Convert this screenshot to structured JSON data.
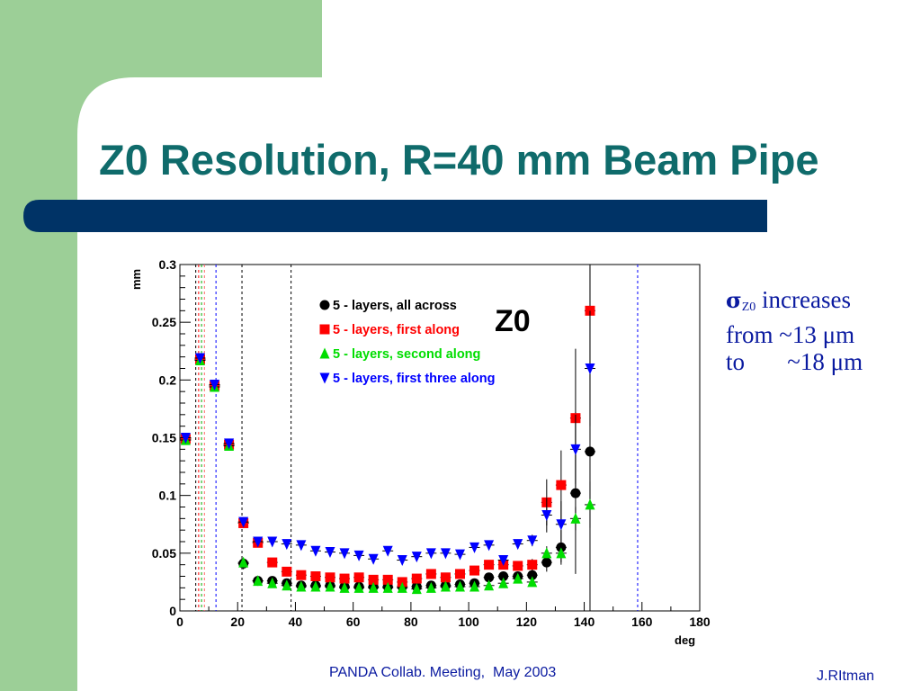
{
  "slide": {
    "title": "Z0 Resolution, R=40 mm Beam Pipe",
    "footer_center": "PANDA Collab. Meeting,  May 2003",
    "footer_right": "J.RItman",
    "side_note": {
      "sigma": "σ",
      "sub": "Z0",
      "line1_rest": " increases",
      "line2": "from ~13 μm",
      "line3": "to       ~18 μm"
    },
    "colors": {
      "title": "#0f6b6b",
      "green_panel": "#9ccf97",
      "bar": "#003366",
      "note_text": "#0a1aa0"
    }
  },
  "chart_data": {
    "type": "scatter",
    "title": "Z0",
    "xlabel": "deg",
    "ylabel": "mm",
    "xlim": [
      0,
      180
    ],
    "ylim": [
      0,
      0.3
    ],
    "xticks": [
      "0",
      "20",
      "40",
      "60",
      "80",
      "100",
      "120",
      "140",
      "160",
      "180"
    ],
    "yticks": [
      "0",
      "0.05",
      "0.1",
      "0.15",
      "0.2",
      "0.25",
      "0.3"
    ],
    "legend_position": "top-center",
    "vertical_lines": [
      {
        "x": 5.5,
        "color": "#000000"
      },
      {
        "x": 6.5,
        "color": "#ff0000"
      },
      {
        "x": 7.5,
        "color": "#00aa00"
      },
      {
        "x": 8.5,
        "color": "#ff6666"
      },
      {
        "x": 12.5,
        "color": "#0000ff"
      },
      {
        "x": 21.5,
        "color": "#000000"
      },
      {
        "x": 38.5,
        "color": "#000000"
      },
      {
        "x": 158.5,
        "color": "#0000ff"
      }
    ],
    "series": [
      {
        "name": "5 - layers, all across",
        "marker": "circle",
        "color": "#000000",
        "x": [
          22,
          27,
          32,
          37,
          42,
          47,
          52,
          57,
          62,
          67,
          72,
          77,
          82,
          87,
          92,
          97,
          102,
          107,
          112,
          117,
          122,
          127,
          132,
          137,
          142
        ],
        "y": [
          0.041,
          0.026,
          0.026,
          0.024,
          0.022,
          0.022,
          0.022,
          0.021,
          0.021,
          0.021,
          0.021,
          0.021,
          0.021,
          0.022,
          0.022,
          0.023,
          0.024,
          0.029,
          0.03,
          0.03,
          0.031,
          0.042,
          0.055,
          0.102,
          0.138
        ],
        "yerr": [
          0.005,
          0.004,
          0.004,
          0.004,
          0.004,
          0.004,
          0.004,
          0.004,
          0.004,
          0.004,
          0.004,
          0.004,
          0.004,
          0.004,
          0.004,
          0.004,
          0.004,
          0.004,
          0.004,
          0.004,
          0.005,
          0.008,
          0.015,
          0.07,
          0.16
        ]
      },
      {
        "name": "5 - layers, first along",
        "marker": "square",
        "color": "#ff0000",
        "x": [
          2,
          7,
          12,
          17,
          22,
          27,
          32,
          37,
          42,
          47,
          52,
          57,
          62,
          67,
          72,
          77,
          82,
          87,
          92,
          97,
          102,
          107,
          112,
          117,
          122,
          127,
          132,
          137,
          142
        ],
        "y": [
          0.149,
          0.218,
          0.195,
          0.144,
          0.076,
          0.059,
          0.042,
          0.034,
          0.031,
          0.03,
          0.029,
          0.028,
          0.029,
          0.027,
          0.027,
          0.025,
          0.028,
          0.032,
          0.029,
          0.032,
          0.035,
          0.04,
          0.04,
          0.039,
          0.04,
          0.094,
          0.109,
          0.167,
          0.26
        ],
        "yerr": [
          0.004,
          0.004,
          0.004,
          0.004,
          0.004,
          0.004,
          0.004,
          0.004,
          0.004,
          0.004,
          0.004,
          0.004,
          0.004,
          0.004,
          0.004,
          0.004,
          0.004,
          0.004,
          0.004,
          0.004,
          0.004,
          0.004,
          0.004,
          0.004,
          0.005,
          0.02,
          0.03,
          0.06,
          0.06
        ]
      },
      {
        "name": "5 - layers, second along",
        "marker": "triangle-up",
        "color": "#00dd00",
        "x": [
          2,
          7,
          12,
          17,
          22,
          27,
          32,
          37,
          42,
          47,
          52,
          57,
          62,
          67,
          72,
          77,
          82,
          87,
          92,
          97,
          102,
          107,
          112,
          117,
          122,
          127,
          132,
          137,
          142
        ],
        "y": [
          0.148,
          0.217,
          0.194,
          0.143,
          0.042,
          0.026,
          0.024,
          0.022,
          0.021,
          0.021,
          0.021,
          0.02,
          0.02,
          0.02,
          0.02,
          0.02,
          0.019,
          0.02,
          0.021,
          0.021,
          0.021,
          0.022,
          0.024,
          0.028,
          0.025,
          0.05,
          0.05,
          0.08,
          0.092
        ],
        "yerr": [
          0.004,
          0.004,
          0.004,
          0.004,
          0.004,
          0.004,
          0.004,
          0.004,
          0.004,
          0.004,
          0.004,
          0.004,
          0.004,
          0.004,
          0.004,
          0.004,
          0.004,
          0.004,
          0.004,
          0.004,
          0.004,
          0.004,
          0.004,
          0.004,
          0.004,
          0.006,
          0.008,
          0.01,
          0.02
        ]
      },
      {
        "name": "5 - layers, first three along",
        "marker": "triangle-down",
        "color": "#0000ff",
        "x": [
          2,
          7,
          12,
          17,
          22,
          27,
          32,
          37,
          42,
          47,
          52,
          57,
          62,
          67,
          72,
          77,
          82,
          87,
          92,
          97,
          102,
          107,
          112,
          117,
          122,
          127,
          132,
          137,
          142
        ],
        "y": [
          0.15,
          0.219,
          0.196,
          0.145,
          0.077,
          0.06,
          0.06,
          0.058,
          0.057,
          0.052,
          0.051,
          0.05,
          0.048,
          0.045,
          0.052,
          0.044,
          0.047,
          0.05,
          0.05,
          0.049,
          0.055,
          0.057,
          0.044,
          0.058,
          0.061,
          0.083,
          0.075,
          0.14,
          0.21
        ],
        "yerr": [
          0.004,
          0.004,
          0.004,
          0.004,
          0.004,
          0.004,
          0.004,
          0.004,
          0.004,
          0.004,
          0.004,
          0.004,
          0.004,
          0.004,
          0.004,
          0.004,
          0.004,
          0.004,
          0.004,
          0.004,
          0.004,
          0.004,
          0.004,
          0.004,
          0.005,
          0.015,
          0.02,
          0.03,
          0.05
        ]
      }
    ]
  }
}
